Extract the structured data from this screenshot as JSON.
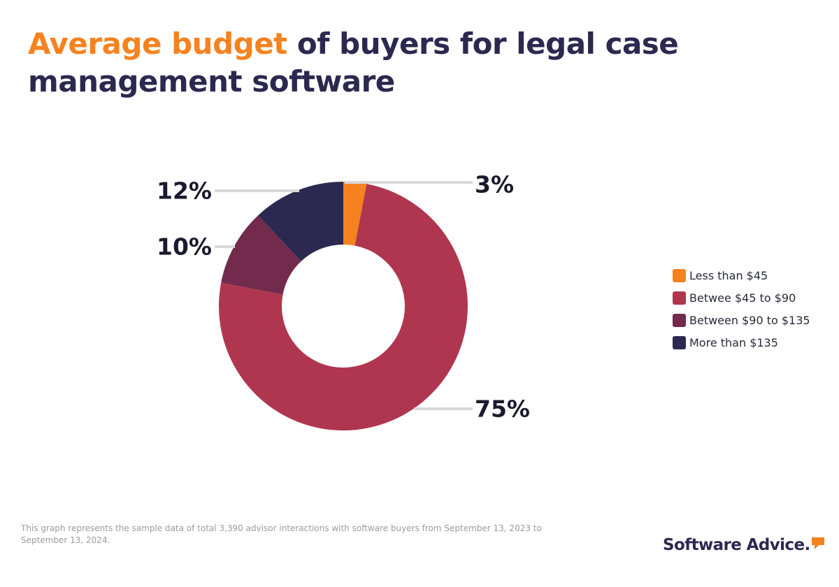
{
  "title": {
    "highlight": "Average budget",
    "rest": " of buyers for legal case management software"
  },
  "colors": {
    "accent": "#f5821f",
    "title_dark": "#2b2950",
    "leader_line": "#d9d9dc"
  },
  "chart_data": {
    "type": "pie",
    "variant": "donut",
    "title": "Average budget of buyers for legal case management software",
    "legend_position": "right",
    "slices": [
      {
        "name": "Less than $45",
        "value": 3,
        "label": "3%",
        "color": "#f5821f"
      },
      {
        "name": "Betwee $45 to $90",
        "value": 75,
        "label": "75%",
        "color": "#b0364f"
      },
      {
        "name": "Between $90 to $135",
        "value": 10,
        "label": "10%",
        "color": "#722b4d"
      },
      {
        "name": "More than $135",
        "value": 12,
        "label": "12%",
        "color": "#2b2950"
      }
    ]
  },
  "footnote": "This graph represents the sample data of total 3,390 advisor interactions with software buyers from September 13, 2023 to September 13, 2024.",
  "brand": {
    "name": "Software Advice.",
    "icon": "speech-bubble-icon",
    "icon_color": "#f5821f"
  }
}
